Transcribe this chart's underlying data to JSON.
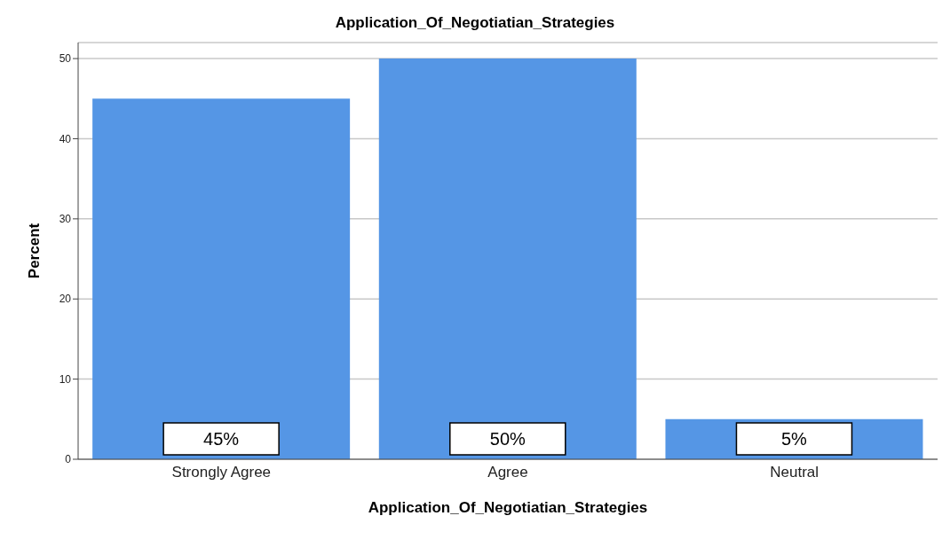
{
  "chart_data": {
    "type": "bar",
    "title": "Application_Of_Negotiatian_Strategies",
    "xlabel": "Application_Of_Negotiatian_Strategies",
    "ylabel": "Percent",
    "categories": [
      "Strongly Agree",
      "Agree",
      "Neutral"
    ],
    "values": [
      45,
      50,
      5
    ],
    "value_labels": [
      "45%",
      "50%",
      "5%"
    ],
    "color": "#5596e5",
    "ylim": [
      0,
      52
    ],
    "yticks": [
      0,
      10,
      20,
      30,
      40,
      50
    ],
    "grid": "y"
  }
}
